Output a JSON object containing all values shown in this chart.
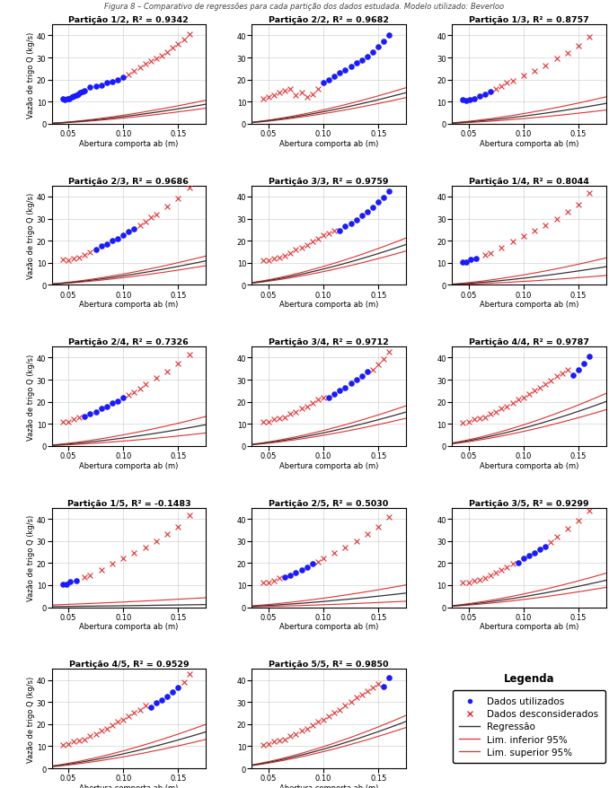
{
  "title": "Figura 8 – Comparativo de regressões para cada partição dos dados estudada. Modelo utilizado: Beverloo",
  "subplots": [
    {
      "title": "Partição 1/2, R² = 0.9342",
      "blue_x": [
        0.045,
        0.047,
        0.049,
        0.051,
        0.053,
        0.055,
        0.057,
        0.059,
        0.061,
        0.063,
        0.065,
        0.07,
        0.075,
        0.08,
        0.085,
        0.09,
        0.095,
        0.1
      ],
      "blue_y": [
        11.5,
        11.0,
        11.2,
        11.5,
        12.0,
        12.5,
        13.0,
        13.5,
        14.0,
        14.5,
        15.0,
        16.5,
        17.0,
        17.5,
        18.5,
        19.0,
        20.0,
        21.0
      ],
      "red_x": [
        0.105,
        0.11,
        0.115,
        0.12,
        0.125,
        0.13,
        0.135,
        0.14,
        0.145,
        0.15,
        0.155,
        0.16
      ],
      "red_y": [
        22.5,
        24.0,
        25.5,
        27.0,
        28.5,
        29.5,
        31.0,
        32.5,
        34.5,
        36.0,
        38.0,
        40.5
      ],
      "reg_C": 148.0,
      "reg_d": 0.022,
      "lim_C_inf": 118.0,
      "lim_C_sup": 178.0
    },
    {
      "title": "Partição 2/2, R² = 0.9682",
      "blue_x": [
        0.1,
        0.105,
        0.11,
        0.115,
        0.12,
        0.125,
        0.13,
        0.135,
        0.14,
        0.145,
        0.15,
        0.155,
        0.16
      ],
      "blue_y": [
        18.5,
        20.0,
        21.5,
        23.0,
        24.5,
        26.0,
        27.5,
        29.0,
        30.5,
        32.5,
        35.0,
        37.5,
        40.0
      ],
      "red_x": [
        0.045,
        0.05,
        0.055,
        0.06,
        0.065,
        0.07,
        0.075,
        0.08,
        0.085,
        0.09,
        0.095
      ],
      "red_y": [
        11.5,
        12.0,
        13.0,
        14.0,
        15.0,
        16.0,
        13.0,
        14.0,
        12.0,
        13.5,
        16.0
      ],
      "reg_C": 220.0,
      "reg_d": 0.015,
      "lim_C_inf": 185.0,
      "lim_C_sup": 255.0
    },
    {
      "title": "Partição 1/3, R² = 0.8757",
      "blue_x": [
        0.045,
        0.048,
        0.051,
        0.055,
        0.06,
        0.065,
        0.07
      ],
      "blue_y": [
        11.0,
        10.5,
        11.0,
        11.5,
        12.5,
        13.5,
        14.5
      ],
      "red_x": [
        0.075,
        0.08,
        0.085,
        0.09,
        0.1,
        0.11,
        0.12,
        0.13,
        0.14,
        0.15,
        0.16
      ],
      "red_y": [
        16.0,
        17.0,
        18.5,
        19.5,
        22.0,
        24.0,
        26.5,
        29.5,
        32.0,
        35.5,
        39.5
      ],
      "reg_C": 148.0,
      "reg_d": 0.018,
      "lim_C_inf": 100.0,
      "lim_C_sup": 196.0
    },
    {
      "title": "Partição 2/3, R² = 0.9686",
      "blue_x": [
        0.075,
        0.08,
        0.085,
        0.09,
        0.095,
        0.1,
        0.105,
        0.11
      ],
      "blue_y": [
        16.0,
        17.5,
        18.5,
        20.0,
        21.0,
        22.5,
        24.0,
        25.5
      ],
      "red_x": [
        0.045,
        0.05,
        0.055,
        0.06,
        0.065,
        0.07,
        0.115,
        0.12,
        0.125,
        0.13,
        0.14,
        0.15,
        0.16
      ],
      "red_y": [
        11.5,
        11.0,
        12.0,
        12.5,
        13.5,
        15.0,
        27.0,
        28.5,
        30.5,
        32.0,
        35.5,
        39.0,
        44.0
      ],
      "reg_C": 175.0,
      "reg_d": 0.018,
      "lim_C_inf": 140.0,
      "lim_C_sup": 210.0
    },
    {
      "title": "Partição 3/3, R² = 0.9759",
      "blue_x": [
        0.115,
        0.12,
        0.125,
        0.13,
        0.135,
        0.14,
        0.145,
        0.15,
        0.155,
        0.16
      ],
      "blue_y": [
        24.5,
        26.5,
        28.0,
        29.5,
        31.5,
        33.0,
        35.0,
        37.5,
        39.5,
        42.5
      ],
      "red_x": [
        0.045,
        0.05,
        0.055,
        0.06,
        0.065,
        0.07,
        0.075,
        0.08,
        0.085,
        0.09,
        0.095,
        0.1,
        0.105,
        0.11
      ],
      "red_y": [
        11.0,
        11.0,
        12.0,
        12.5,
        13.0,
        14.5,
        16.0,
        17.0,
        18.0,
        19.5,
        21.0,
        22.5,
        23.5,
        24.5
      ],
      "reg_C": 280.0,
      "reg_d": 0.013,
      "lim_C_inf": 235.0,
      "lim_C_sup": 325.0
    },
    {
      "title": "Partição 1/4, R² = 0.8044",
      "blue_x": [
        0.045,
        0.048,
        0.052,
        0.057
      ],
      "blue_y": [
        10.5,
        10.5,
        11.5,
        12.0
      ],
      "red_x": [
        0.065,
        0.07,
        0.08,
        0.09,
        0.1,
        0.11,
        0.12,
        0.13,
        0.14,
        0.15,
        0.16
      ],
      "red_y": [
        13.5,
        14.5,
        17.0,
        19.5,
        22.0,
        24.5,
        27.0,
        30.0,
        33.0,
        36.5,
        41.5
      ],
      "reg_C": 135.0,
      "reg_d": 0.02,
      "lim_C_inf": 70.0,
      "lim_C_sup": 200.0
    },
    {
      "title": "Partição 2/4, R² = 0.7326",
      "blue_x": [
        0.065,
        0.07,
        0.075,
        0.08,
        0.085,
        0.09,
        0.095,
        0.1
      ],
      "blue_y": [
        13.5,
        14.5,
        15.5,
        17.0,
        18.0,
        19.5,
        20.5,
        22.0
      ],
      "red_x": [
        0.045,
        0.05,
        0.055,
        0.06,
        0.105,
        0.11,
        0.115,
        0.12,
        0.13,
        0.14,
        0.15,
        0.16
      ],
      "red_y": [
        11.0,
        11.0,
        12.0,
        13.0,
        23.0,
        24.5,
        26.0,
        28.0,
        31.0,
        33.5,
        37.5,
        41.5
      ],
      "reg_C": 155.0,
      "reg_d": 0.018,
      "lim_C_inf": 95.0,
      "lim_C_sup": 215.0
    },
    {
      "title": "Partição 3/4, R² = 0.9712",
      "blue_x": [
        0.105,
        0.11,
        0.115,
        0.12,
        0.125,
        0.13,
        0.135,
        0.14
      ],
      "blue_y": [
        22.0,
        23.5,
        25.0,
        26.5,
        28.5,
        30.0,
        31.5,
        33.5
      ],
      "red_x": [
        0.045,
        0.05,
        0.055,
        0.06,
        0.065,
        0.07,
        0.075,
        0.08,
        0.085,
        0.09,
        0.095,
        0.1,
        0.145,
        0.15,
        0.155,
        0.16
      ],
      "red_y": [
        11.0,
        11.0,
        12.0,
        12.5,
        13.0,
        14.5,
        15.5,
        17.0,
        18.0,
        19.5,
        21.0,
        22.0,
        34.5,
        37.0,
        39.5,
        42.5
      ],
      "reg_C": 240.0,
      "reg_d": 0.015,
      "lim_C_inf": 196.0,
      "lim_C_sup": 284.0
    },
    {
      "title": "Partição 4/4, R² = 0.9787",
      "blue_x": [
        0.145,
        0.15,
        0.155,
        0.16
      ],
      "blue_y": [
        32.0,
        34.5,
        37.5,
        40.5
      ],
      "red_x": [
        0.045,
        0.05,
        0.055,
        0.06,
        0.065,
        0.07,
        0.075,
        0.08,
        0.085,
        0.09,
        0.095,
        0.1,
        0.105,
        0.11,
        0.115,
        0.12,
        0.125,
        0.13,
        0.135,
        0.14
      ],
      "red_y": [
        10.5,
        11.0,
        12.0,
        12.5,
        13.0,
        14.5,
        15.5,
        17.0,
        18.0,
        19.5,
        21.0,
        22.0,
        23.5,
        25.0,
        26.5,
        28.0,
        29.5,
        31.5,
        33.0,
        34.5
      ],
      "reg_C": 300.0,
      "reg_d": 0.01,
      "lim_C_inf": 245.0,
      "lim_C_sup": 355.0
    },
    {
      "title": "Partição 1/5, R² = -0.1483",
      "blue_x": [
        0.045,
        0.048,
        0.052,
        0.057
      ],
      "blue_y": [
        10.5,
        10.5,
        11.5,
        12.0
      ],
      "red_x": [
        0.065,
        0.07,
        0.08,
        0.09,
        0.1,
        0.11,
        0.12,
        0.13,
        0.14,
        0.15,
        0.16
      ],
      "red_y": [
        13.5,
        14.5,
        17.0,
        19.5,
        22.0,
        24.5,
        27.0,
        30.0,
        33.0,
        36.5,
        41.5
      ],
      "reg_C": 11.0,
      "reg_d": -0.05,
      "lim_C_inf": -18.0,
      "lim_C_sup": 40.0
    },
    {
      "title": "Partição 2/5, R² = 0.5030",
      "blue_x": [
        0.065,
        0.07,
        0.075,
        0.08,
        0.085,
        0.09
      ],
      "blue_y": [
        13.5,
        14.5,
        15.5,
        17.0,
        18.0,
        19.5
      ],
      "red_x": [
        0.045,
        0.05,
        0.055,
        0.06,
        0.095,
        0.1,
        0.11,
        0.12,
        0.13,
        0.14,
        0.15,
        0.16
      ],
      "red_y": [
        11.0,
        11.0,
        12.0,
        13.0,
        20.5,
        22.0,
        24.5,
        27.0,
        30.0,
        33.0,
        36.5,
        41.0
      ],
      "reg_C": 95.0,
      "reg_d": 0.01,
      "lim_C_inf": 40.0,
      "lim_C_sup": 150.0
    },
    {
      "title": "Partição 3/5, R² = 0.9299",
      "blue_x": [
        0.095,
        0.1,
        0.105,
        0.11,
        0.115,
        0.12
      ],
      "blue_y": [
        20.0,
        22.0,
        23.5,
        24.5,
        26.0,
        27.5
      ],
      "red_x": [
        0.045,
        0.05,
        0.055,
        0.06,
        0.065,
        0.07,
        0.075,
        0.08,
        0.085,
        0.09,
        0.125,
        0.13,
        0.14,
        0.15,
        0.16
      ],
      "red_y": [
        11.0,
        11.0,
        12.0,
        12.5,
        13.0,
        14.5,
        15.5,
        17.0,
        18.0,
        19.5,
        29.5,
        32.0,
        35.5,
        39.0,
        43.5
      ],
      "reg_C": 190.0,
      "reg_d": 0.015,
      "lim_C_inf": 140.0,
      "lim_C_sup": 240.0
    },
    {
      "title": "Partição 4/5, R² = 0.9529",
      "blue_x": [
        0.125,
        0.13,
        0.135,
        0.14,
        0.145,
        0.15
      ],
      "blue_y": [
        27.5,
        29.5,
        31.0,
        32.5,
        34.5,
        36.5
      ],
      "red_x": [
        0.045,
        0.05,
        0.055,
        0.06,
        0.065,
        0.07,
        0.075,
        0.08,
        0.085,
        0.09,
        0.095,
        0.1,
        0.105,
        0.11,
        0.115,
        0.12,
        0.155,
        0.16
      ],
      "red_y": [
        10.5,
        11.0,
        12.0,
        12.5,
        13.0,
        14.5,
        15.5,
        17.0,
        18.0,
        19.5,
        21.0,
        22.0,
        23.5,
        25.0,
        26.5,
        28.5,
        39.0,
        42.5
      ],
      "reg_C": 250.0,
      "reg_d": 0.012,
      "lim_C_inf": 198.0,
      "lim_C_sup": 302.0
    },
    {
      "title": "Partição 5/5, R² = 0.9850",
      "blue_x": [
        0.155,
        0.16
      ],
      "blue_y": [
        37.0,
        41.0
      ],
      "red_x": [
        0.045,
        0.05,
        0.055,
        0.06,
        0.065,
        0.07,
        0.075,
        0.08,
        0.085,
        0.09,
        0.095,
        0.1,
        0.105,
        0.11,
        0.115,
        0.12,
        0.125,
        0.13,
        0.135,
        0.14,
        0.145,
        0.15
      ],
      "red_y": [
        10.5,
        11.0,
        12.0,
        12.5,
        13.0,
        14.5,
        15.5,
        17.0,
        18.0,
        19.5,
        21.0,
        22.0,
        23.5,
        25.0,
        26.5,
        28.5,
        30.0,
        32.0,
        33.5,
        35.0,
        36.5,
        38.0
      ],
      "reg_C": 310.0,
      "reg_d": 0.008,
      "lim_C_inf": 270.0,
      "lim_C_sup": 350.0
    }
  ],
  "xlabel": "Abertura comporta ab (m)",
  "ylabel": "Vazão de trigo Q (kg/s)",
  "xlim": [
    0.035,
    0.175
  ],
  "ylim": [
    0,
    45
  ],
  "xticks": [
    0.05,
    0.1,
    0.15
  ],
  "yticks": [
    0,
    10,
    20,
    30,
    40
  ],
  "grid_color": "#c8c8c8",
  "blue_color": "#1a1aff",
  "red_color": "#e03030",
  "reg_color": "#333333",
  "lim_color": "#e03030",
  "legend_title": "Legenda",
  "legend_items": [
    "Dados utilizados",
    "Dados desconsiderados",
    "Regressão",
    "Lim. inferior 95%",
    "Lim. superior 95%"
  ]
}
